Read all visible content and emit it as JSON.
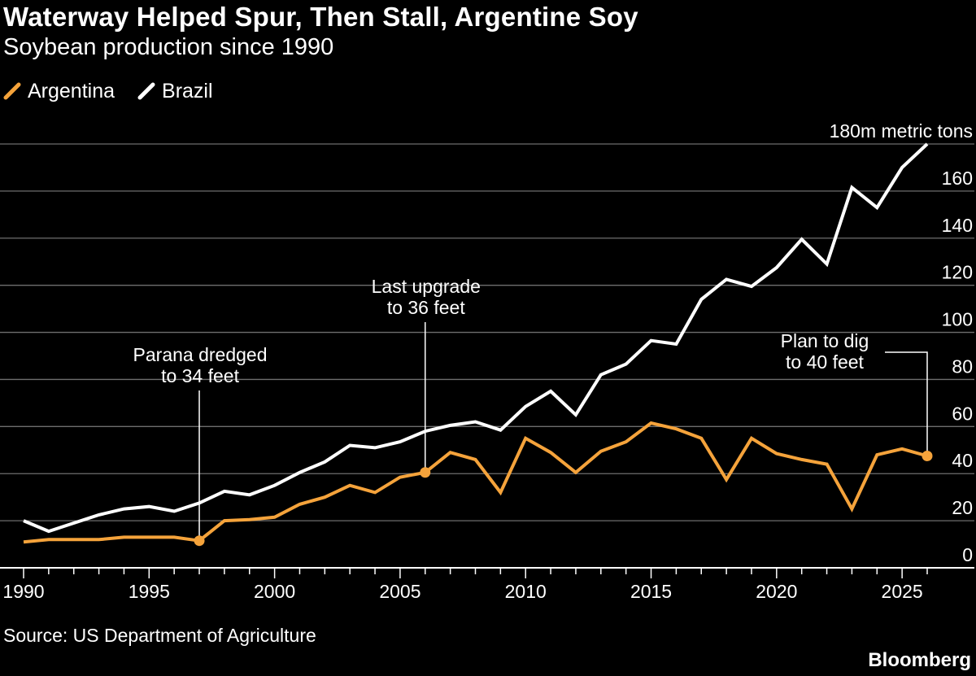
{
  "chart_data": {
    "type": "line",
    "title": "Waterway Helped Spur, Then Stall, Argentine Soy",
    "subtitle": "Soybean production since 1990",
    "x": [
      1990,
      1991,
      1992,
      1993,
      1994,
      1995,
      1996,
      1997,
      1998,
      1999,
      2000,
      2001,
      2002,
      2003,
      2004,
      2005,
      2006,
      2007,
      2008,
      2009,
      2010,
      2011,
      2012,
      2013,
      2014,
      2015,
      2016,
      2017,
      2018,
      2019,
      2020,
      2021,
      2022,
      2023,
      2024,
      2025,
      2026
    ],
    "series": [
      {
        "name": "Argentina",
        "color": "#f5a33b",
        "values": [
          11,
          12,
          12,
          12,
          13,
          13,
          13,
          11.5,
          20,
          20.5,
          21.5,
          27,
          30,
          35,
          32,
          38.5,
          40.5,
          49,
          46,
          32,
          55,
          49,
          40.5,
          49.5,
          53.5,
          61.5,
          59,
          55,
          37.5,
          55,
          48.5,
          46,
          44,
          25,
          48,
          50.5,
          47.5
        ]
      },
      {
        "name": "Brazil",
        "color": "#ffffff",
        "values": [
          20,
          15.5,
          19,
          22.5,
          25,
          26,
          24,
          27.5,
          32.5,
          31,
          35,
          40.5,
          45,
          52,
          51,
          53.5,
          58,
          60.5,
          62,
          58.5,
          68.5,
          75,
          65,
          82,
          86.5,
          96.5,
          95,
          114,
          122.5,
          119.5,
          127.5,
          139.5,
          129,
          161.5,
          153,
          170,
          180
        ]
      }
    ],
    "xticks": [
      1990,
      1995,
      2000,
      2005,
      2010,
      2015,
      2020,
      2025
    ],
    "yticks": [
      0,
      20,
      40,
      60,
      80,
      100,
      120,
      140,
      160,
      180
    ],
    "ytick_labels": [
      "0",
      "20",
      "40",
      "60",
      "80",
      "100",
      "120",
      "140",
      "160",
      "180m metric tons"
    ],
    "xlim": [
      1990,
      2026
    ],
    "ylim": [
      0,
      180
    ],
    "grid": true,
    "legend_position": "top-left",
    "annotations": [
      {
        "lines": [
          "Parana dredged",
          "to 34 feet"
        ],
        "year": 1997,
        "series": "Argentina"
      },
      {
        "lines": [
          "Last upgrade",
          "to 36 feet"
        ],
        "year": 2006,
        "series": "Argentina"
      },
      {
        "lines": [
          "Plan to dig",
          "to 40 feet"
        ],
        "year": 2026,
        "series": "Argentina"
      }
    ],
    "source": "Source: US Department of Agriculture",
    "brand": "Bloomberg"
  }
}
